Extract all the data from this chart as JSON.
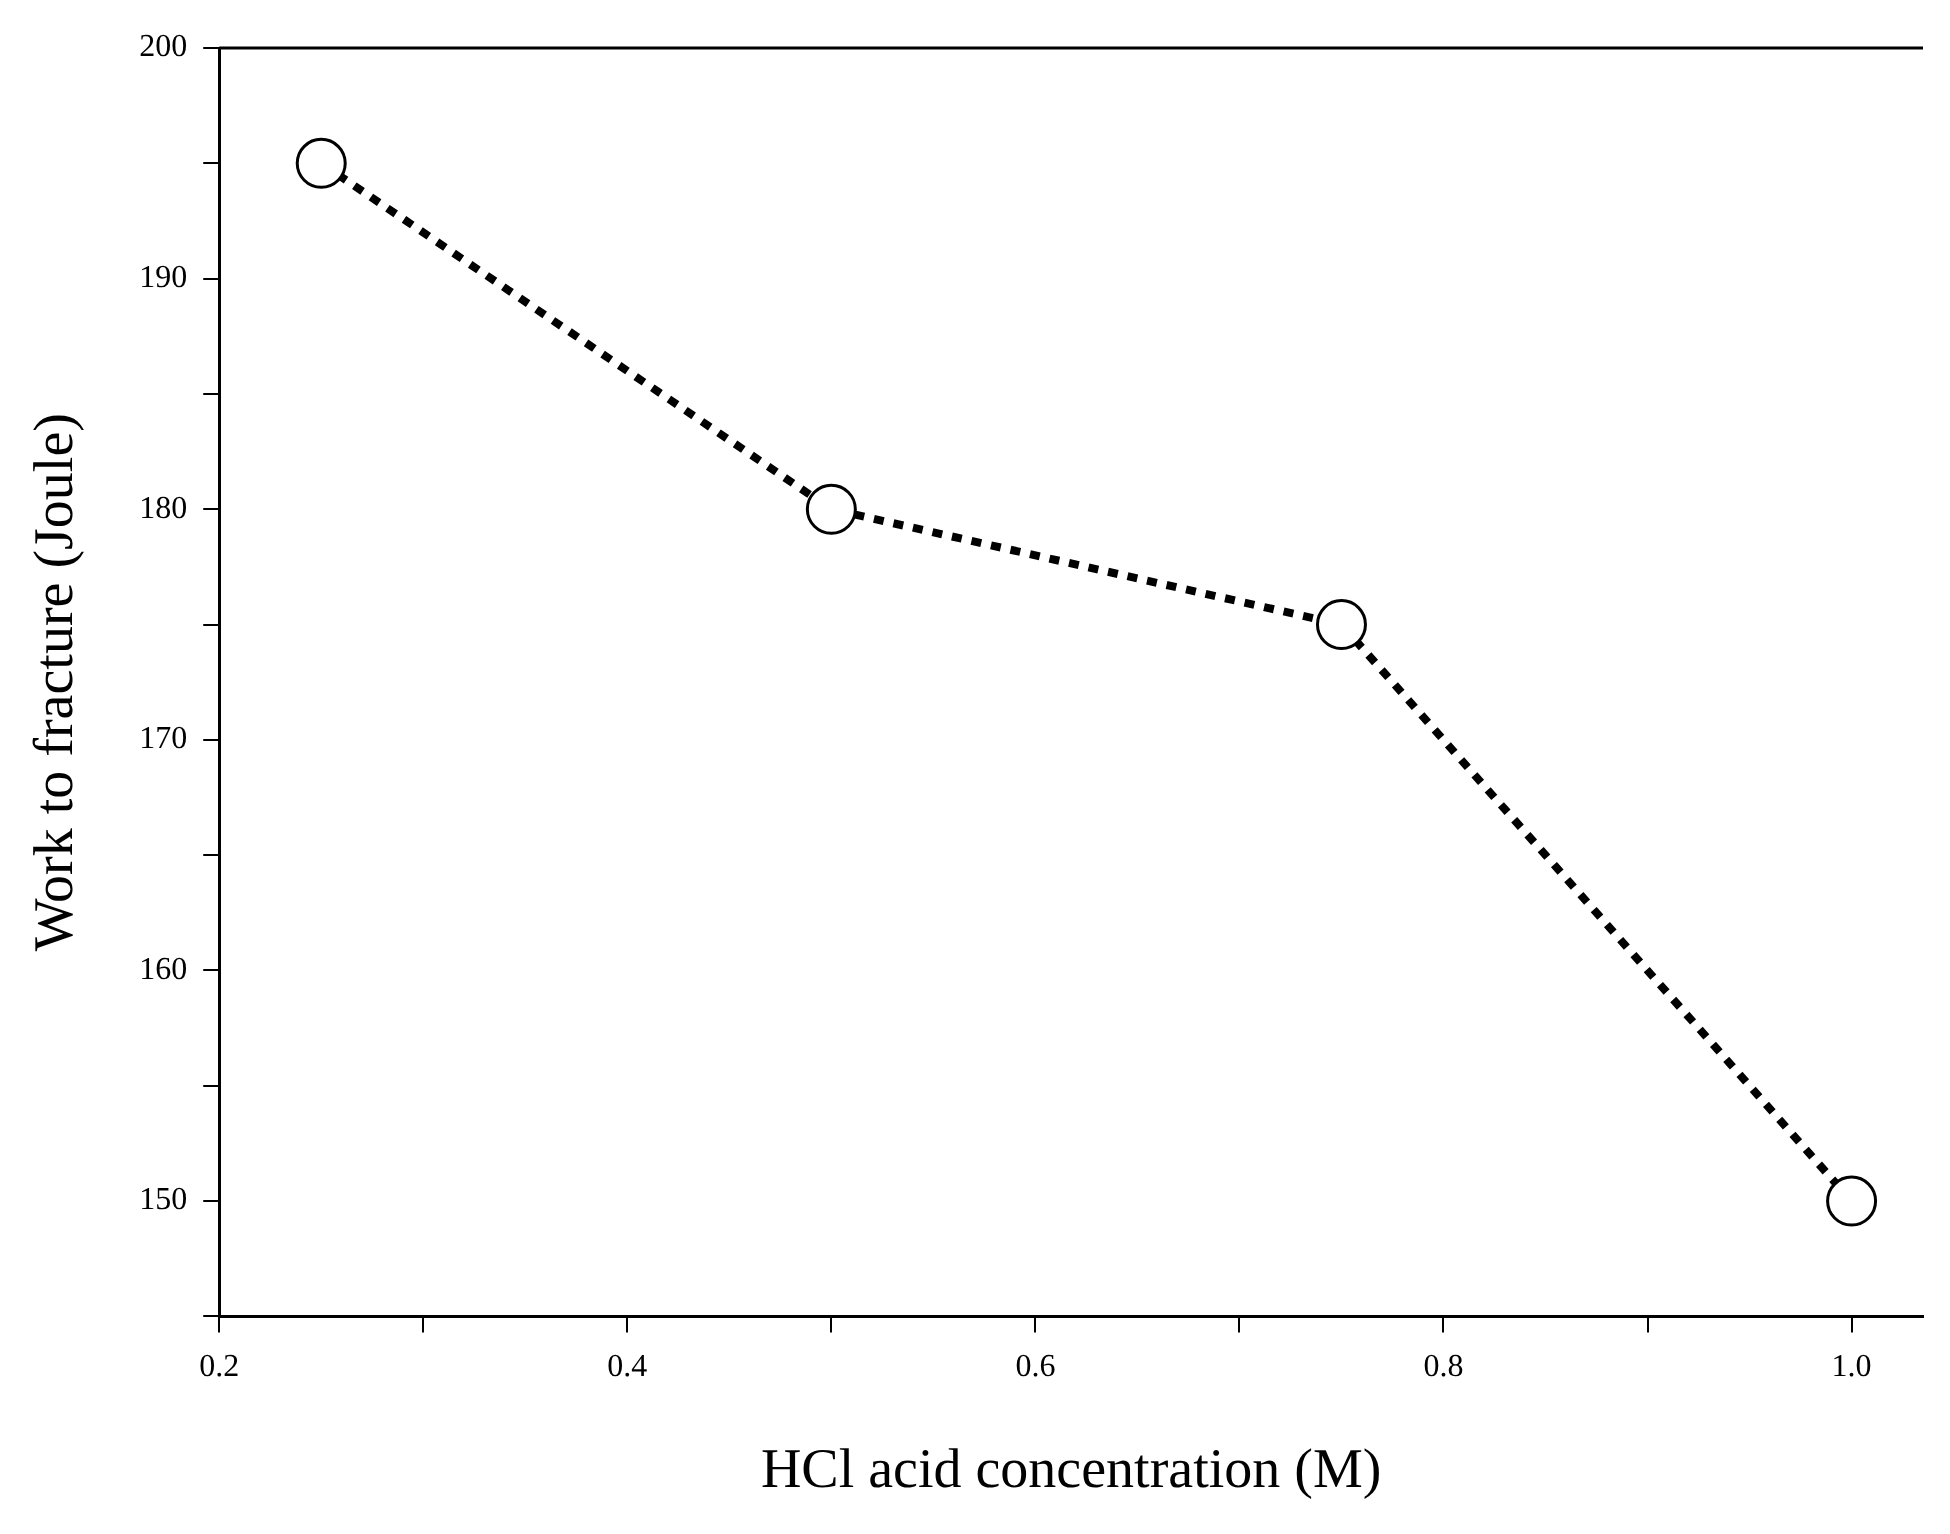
{
  "chart_data": {
    "type": "line",
    "xlabel": "HCl acid concentration (M)",
    "ylabel": "Work to fracture (Joule)",
    "x": [
      0.25,
      0.5,
      0.75,
      1.0
    ],
    "series": [
      {
        "color": "#000000",
        "values": [
          195,
          180,
          175,
          150
        ]
      }
    ],
    "xlim": [
      0.2,
      1.035
    ],
    "xticks": [
      0.2,
      {
        "value": 0.3,
        "label": null
      },
      0.4,
      {
        "value": 0.5,
        "label": null
      },
      0.6,
      {
        "value": 0.7,
        "label": null
      },
      0.8,
      {
        "value": 0.9,
        "label": null
      },
      {
        "value": 1.0,
        "label": "1.0"
      }
    ],
    "ylim": [
      145,
      200
    ],
    "yticks": [
      {
        "value": 145,
        "label": null
      },
      150,
      {
        "value": 155,
        "label": null
      },
      160,
      {
        "value": 165,
        "label": null
      },
      170,
      {
        "value": 175,
        "label": null
      },
      180,
      {
        "value": 185,
        "label": null
      },
      190,
      {
        "value": 195,
        "label": null
      },
      200
    ],
    "grid": false,
    "legend": false,
    "marker": "circle",
    "line_style": "dotted"
  }
}
